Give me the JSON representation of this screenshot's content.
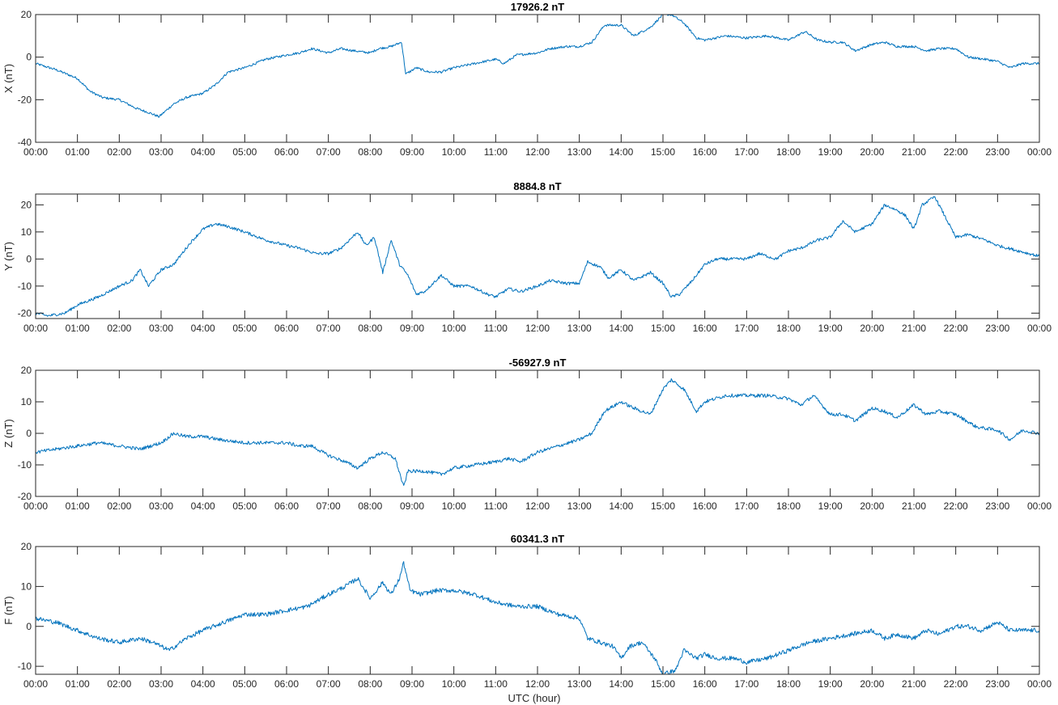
{
  "figure": {
    "xlabel": "UTC (hour)",
    "line_color": "#0072BD"
  },
  "chart_data": [
    {
      "type": "line",
      "title": "17926.2 nT",
      "ylabel": "X (nT)",
      "xlabel": "",
      "xlim": [
        0,
        24
      ],
      "ylim": [
        -40,
        20
      ],
      "yticks": [
        -40,
        -20,
        0,
        20
      ],
      "xtick_labels": [
        "00:00",
        "01:00",
        "02:00",
        "03:00",
        "04:00",
        "05:00",
        "06:00",
        "07:00",
        "08:00",
        "09:00",
        "10:00",
        "11:00",
        "12:00",
        "13:00",
        "14:00",
        "15:00",
        "16:00",
        "17:00",
        "18:00",
        "19:00",
        "20:00",
        "21:00",
        "22:00",
        "23:00",
        "00:00"
      ],
      "grid": false,
      "series": [
        {
          "x": [
            0,
            0.5,
            1,
            1.3,
            1.6,
            2,
            2.4,
            2.7,
            2.95,
            3.3,
            3.6,
            4,
            4.3,
            4.6,
            5,
            5.5,
            6,
            6.3,
            6.6,
            6.8,
            7,
            7.3,
            7.6,
            8,
            8.2,
            8.5,
            8.75,
            8.85,
            9.1,
            9.4,
            9.7,
            10,
            10.5,
            11,
            11.2,
            11.5,
            12,
            12.3,
            12.7,
            13,
            13.3,
            13.6,
            14,
            14.3,
            14.7,
            15,
            15.2,
            15.5,
            15.8,
            16,
            16.5,
            17,
            17.5,
            18,
            18.4,
            18.7,
            19,
            19.3,
            19.6,
            20,
            20.3,
            20.6,
            21,
            21.3,
            21.6,
            22,
            22.3,
            22.7,
            23,
            23.3,
            23.6,
            24
          ],
          "y": [
            -3,
            -6,
            -10,
            -16,
            -19,
            -20,
            -24,
            -26,
            -28,
            -22,
            -19,
            -17,
            -13,
            -7,
            -5,
            -1,
            1,
            2,
            4,
            3,
            2,
            4,
            3,
            2,
            4,
            5,
            7,
            -8,
            -5,
            -7,
            -7,
            -5,
            -3,
            -1,
            -3,
            1,
            2,
            4,
            5,
            5,
            7,
            15,
            15,
            10,
            14,
            20,
            20,
            16,
            9,
            8,
            10,
            9,
            10,
            8,
            12,
            8,
            7,
            7,
            3,
            6,
            7,
            5,
            5,
            3,
            4,
            4,
            0,
            -1,
            -2,
            -5,
            -3,
            -3
          ]
        }
      ]
    },
    {
      "type": "line",
      "title": "8884.8 nT",
      "ylabel": "Y (nT)",
      "xlabel": "",
      "xlim": [
        0,
        24
      ],
      "ylim": [
        -22,
        24
      ],
      "yticks": [
        -20,
        -10,
        0,
        10,
        20
      ],
      "xtick_labels": [
        "00:00",
        "01:00",
        "02:00",
        "03:00",
        "04:00",
        "05:00",
        "06:00",
        "07:00",
        "08:00",
        "09:00",
        "10:00",
        "11:00",
        "12:00",
        "13:00",
        "14:00",
        "15:00",
        "16:00",
        "17:00",
        "18:00",
        "19:00",
        "20:00",
        "21:00",
        "22:00",
        "23:00",
        "00:00"
      ],
      "grid": false,
      "series": [
        {
          "x": [
            0,
            0.3,
            0.7,
            1,
            1.5,
            2,
            2.3,
            2.5,
            2.7,
            3,
            3.3,
            3.7,
            4,
            4.3,
            4.6,
            5,
            5.5,
            6,
            6.3,
            6.7,
            7,
            7.3,
            7.7,
            7.9,
            8.1,
            8.3,
            8.5,
            8.7,
            8.9,
            9.1,
            9.3,
            9.7,
            10,
            10.4,
            10.8,
            11,
            11.3,
            11.6,
            12,
            12.3,
            12.7,
            13,
            13.2,
            13.5,
            13.7,
            14,
            14.3,
            14.7,
            15,
            15.2,
            15.4,
            15.7,
            16,
            16.3,
            16.7,
            17,
            17.3,
            17.7,
            18,
            18.3,
            18.7,
            19,
            19.3,
            19.6,
            20,
            20.3,
            20.6,
            20.8,
            21,
            21.2,
            21.5,
            21.8,
            22,
            22.3,
            22.7,
            23,
            23.5,
            24
          ],
          "y": [
            -20,
            -21,
            -20,
            -17,
            -14,
            -10,
            -8,
            -4,
            -10,
            -4,
            -2,
            6,
            11,
            13,
            12,
            10,
            7,
            5,
            4,
            2,
            2,
            4,
            10,
            5,
            8,
            -5,
            7,
            -2,
            -6,
            -13,
            -12,
            -6,
            -10,
            -10,
            -13,
            -14,
            -11,
            -12,
            -10,
            -8,
            -9,
            -9,
            -1,
            -3,
            -7,
            -4,
            -8,
            -5,
            -9,
            -14,
            -13,
            -8,
            -2,
            0,
            0,
            0,
            2,
            0,
            3,
            4,
            7,
            8,
            14,
            10,
            13,
            20,
            18,
            16,
            11,
            20,
            23,
            14,
            8,
            9,
            7,
            5,
            3,
            1
          ]
        }
      ]
    },
    {
      "type": "line",
      "title": "-56927.9 nT",
      "ylabel": "Z (nT)",
      "xlabel": "",
      "xlim": [
        0,
        24
      ],
      "ylim": [
        -20,
        20
      ],
      "yticks": [
        -20,
        -10,
        0,
        10,
        20
      ],
      "xtick_labels": [
        "00:00",
        "01:00",
        "02:00",
        "03:00",
        "04:00",
        "05:00",
        "06:00",
        "07:00",
        "08:00",
        "09:00",
        "10:00",
        "11:00",
        "12:00",
        "13:00",
        "14:00",
        "15:00",
        "16:00",
        "17:00",
        "18:00",
        "19:00",
        "20:00",
        "21:00",
        "22:00",
        "23:00",
        "00:00"
      ],
      "grid": false,
      "series": [
        {
          "x": [
            0,
            0.5,
            1,
            1.5,
            2,
            2.5,
            3,
            3.3,
            3.6,
            4,
            4.4,
            5,
            5.5,
            6,
            6.3,
            6.6,
            7,
            7.4,
            7.7,
            8,
            8.3,
            8.6,
            8.8,
            8.9,
            9.3,
            9.7,
            10,
            10.5,
            11,
            11.3,
            11.6,
            12,
            12.5,
            13,
            13.3,
            13.6,
            14,
            14.3,
            14.7,
            15,
            15.2,
            15.5,
            15.8,
            16,
            16.5,
            17,
            17.5,
            18,
            18.3,
            18.6,
            19,
            19.3,
            19.6,
            20,
            20.3,
            20.6,
            21,
            21.3,
            21.6,
            22,
            22.5,
            23,
            23.3,
            23.6,
            24
          ],
          "y": [
            -6,
            -5,
            -4,
            -3,
            -4,
            -5,
            -3,
            0,
            -1,
            -1,
            -2,
            -3,
            -3,
            -3,
            -4,
            -4,
            -7,
            -9,
            -11,
            -8,
            -6,
            -8,
            -17,
            -12,
            -12,
            -13,
            -11,
            -10,
            -9,
            -8,
            -9,
            -6,
            -4,
            -2,
            0,
            7,
            10,
            8,
            6,
            14,
            17,
            14,
            7,
            10,
            12,
            12,
            12,
            11,
            9,
            12,
            6,
            6,
            4,
            8,
            7,
            5,
            9,
            6,
            7,
            6,
            2,
            1,
            -2,
            1,
            0
          ]
        }
      ]
    },
    {
      "type": "line",
      "title": "60341.3 nT",
      "ylabel": "F (nT)",
      "xlabel": "UTC (hour)",
      "xlim": [
        0,
        24
      ],
      "ylim": [
        -12,
        20
      ],
      "yticks": [
        -10,
        0,
        10,
        20
      ],
      "xtick_labels": [
        "00:00",
        "01:00",
        "02:00",
        "03:00",
        "04:00",
        "05:00",
        "06:00",
        "07:00",
        "08:00",
        "09:00",
        "10:00",
        "11:00",
        "12:00",
        "13:00",
        "14:00",
        "15:00",
        "16:00",
        "17:00",
        "18:00",
        "19:00",
        "20:00",
        "21:00",
        "22:00",
        "23:00",
        "00:00"
      ],
      "grid": false,
      "series": [
        {
          "x": [
            0,
            0.5,
            1,
            1.5,
            2,
            2.5,
            2.8,
            3.2,
            3.6,
            4,
            4.5,
            5,
            5.5,
            6,
            6.5,
            7,
            7.4,
            7.7,
            8,
            8.3,
            8.5,
            8.7,
            8.8,
            8.95,
            9.2,
            9.6,
            10,
            10.5,
            11,
            11.5,
            12,
            12.5,
            13,
            13.2,
            13.5,
            13.8,
            14,
            14.2,
            14.5,
            14.8,
            15,
            15.3,
            15.5,
            15.8,
            16,
            16.3,
            16.7,
            17,
            17.5,
            18,
            18.5,
            19,
            19.5,
            20,
            20.3,
            20.6,
            21,
            21.3,
            21.6,
            22,
            22.3,
            22.6,
            23,
            23.3,
            23.6,
            24
          ],
          "y": [
            2,
            1,
            -1,
            -3,
            -4,
            -3,
            -4,
            -6,
            -3,
            -1,
            1,
            3,
            3,
            4,
            5,
            8,
            10,
            12,
            7,
            11,
            8,
            12,
            16,
            9,
            8,
            9,
            9,
            8,
            6,
            5,
            5,
            3,
            2,
            -3,
            -4,
            -5,
            -8,
            -5,
            -4,
            -8,
            -12,
            -11,
            -6,
            -8,
            -7,
            -8,
            -8,
            -9,
            -8,
            -6,
            -4,
            -3,
            -2,
            -1,
            -3,
            -2,
            -3,
            -1,
            -2,
            0,
            0,
            -1,
            1,
            -1,
            -1,
            -1
          ]
        }
      ]
    }
  ]
}
